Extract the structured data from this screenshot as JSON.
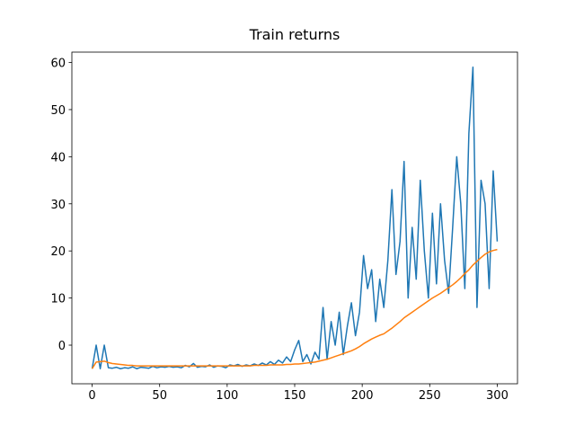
{
  "chart_data": {
    "type": "line",
    "title": "Train returns",
    "x": [
      0,
      3,
      6,
      9,
      12,
      15,
      18,
      21,
      24,
      27,
      30,
      33,
      36,
      39,
      42,
      45,
      48,
      51,
      54,
      57,
      60,
      63,
      66,
      69,
      72,
      75,
      78,
      81,
      84,
      87,
      90,
      93,
      96,
      99,
      102,
      105,
      108,
      111,
      114,
      117,
      120,
      123,
      126,
      129,
      132,
      135,
      138,
      141,
      144,
      147,
      150,
      153,
      156,
      159,
      162,
      165,
      168,
      171,
      174,
      177,
      180,
      183,
      186,
      189,
      192,
      195,
      198,
      201,
      204,
      207,
      210,
      213,
      216,
      219,
      222,
      225,
      228,
      231,
      234,
      237,
      240,
      243,
      246,
      249,
      252,
      255,
      258,
      261,
      264,
      267,
      270,
      273,
      276,
      279,
      282,
      285,
      288,
      291,
      294,
      297,
      300
    ],
    "series": [
      {
        "color": "#1f77b4",
        "values": [
          -5,
          0,
          -5,
          0,
          -4.8,
          -4.9,
          -4.7,
          -5,
          -4.8,
          -4.9,
          -4.6,
          -5,
          -4.7,
          -4.8,
          -4.9,
          -4.5,
          -4.8,
          -4.6,
          -4.7,
          -4.5,
          -4.7,
          -4.6,
          -4.8,
          -4.3,
          -4.6,
          -3.9,
          -4.7,
          -4.5,
          -4.6,
          -4.2,
          -4.7,
          -4.4,
          -4.5,
          -4.8,
          -4.2,
          -4.4,
          -4.1,
          -4.5,
          -4.2,
          -4.4,
          -4,
          -4.3,
          -3.8,
          -4.2,
          -3.5,
          -4.1,
          -3.2,
          -3.8,
          -2.5,
          -3.5,
          -1,
          1,
          -3.5,
          -2,
          -4,
          -1.5,
          -3,
          8,
          -3,
          5,
          0,
          7,
          -2,
          4,
          9,
          2,
          7,
          19,
          12,
          16,
          5,
          14,
          8,
          18,
          33,
          15,
          22,
          39,
          10,
          25,
          14,
          35,
          20,
          10,
          28,
          13,
          30,
          18,
          11,
          25,
          40,
          30,
          12,
          45,
          59,
          8,
          35,
          30,
          12,
          37,
          22
        ]
      },
      {
        "color": "#ff7f0e",
        "values": [
          -5,
          -3.6,
          -3.5,
          -3.4,
          -3.7,
          -3.9,
          -4,
          -4.1,
          -4.2,
          -4.3,
          -4.3,
          -4.4,
          -4.4,
          -4.4,
          -4.4,
          -4.4,
          -4.4,
          -4.4,
          -4.4,
          -4.4,
          -4.4,
          -4.4,
          -4.4,
          -4.4,
          -4.4,
          -4.4,
          -4.4,
          -4.4,
          -4.4,
          -4.4,
          -4.4,
          -4.4,
          -4.4,
          -4.4,
          -4.4,
          -4.4,
          -4.4,
          -4.4,
          -4.4,
          -4.4,
          -4.3,
          -4.3,
          -4.3,
          -4.3,
          -4.2,
          -4.2,
          -4.2,
          -4.2,
          -4.1,
          -4.1,
          -4,
          -4,
          -3.9,
          -3.8,
          -3.7,
          -3.6,
          -3.4,
          -3.2,
          -3,
          -2.7,
          -2.4,
          -2.1,
          -1.8,
          -1.5,
          -1.2,
          -0.8,
          -0.3,
          0.3,
          0.8,
          1.3,
          1.7,
          2.1,
          2.4,
          3,
          3.6,
          4.3,
          5,
          5.8,
          6.4,
          7,
          7.6,
          8.2,
          8.8,
          9.4,
          10,
          10.5,
          11,
          11.6,
          12.2,
          12.8,
          13.5,
          14.3,
          15.2,
          16,
          17,
          17.8,
          18.6,
          19.3,
          19.8,
          20.1,
          20.3
        ]
      }
    ],
    "xlim": [
      -15,
      315
    ],
    "xticks": [
      0,
      50,
      100,
      150,
      200,
      250,
      300
    ],
    "ylim": [
      -8.2,
      62.2
    ],
    "yticks": [
      0,
      10,
      20,
      30,
      40,
      50,
      60
    ],
    "grid": false
  }
}
